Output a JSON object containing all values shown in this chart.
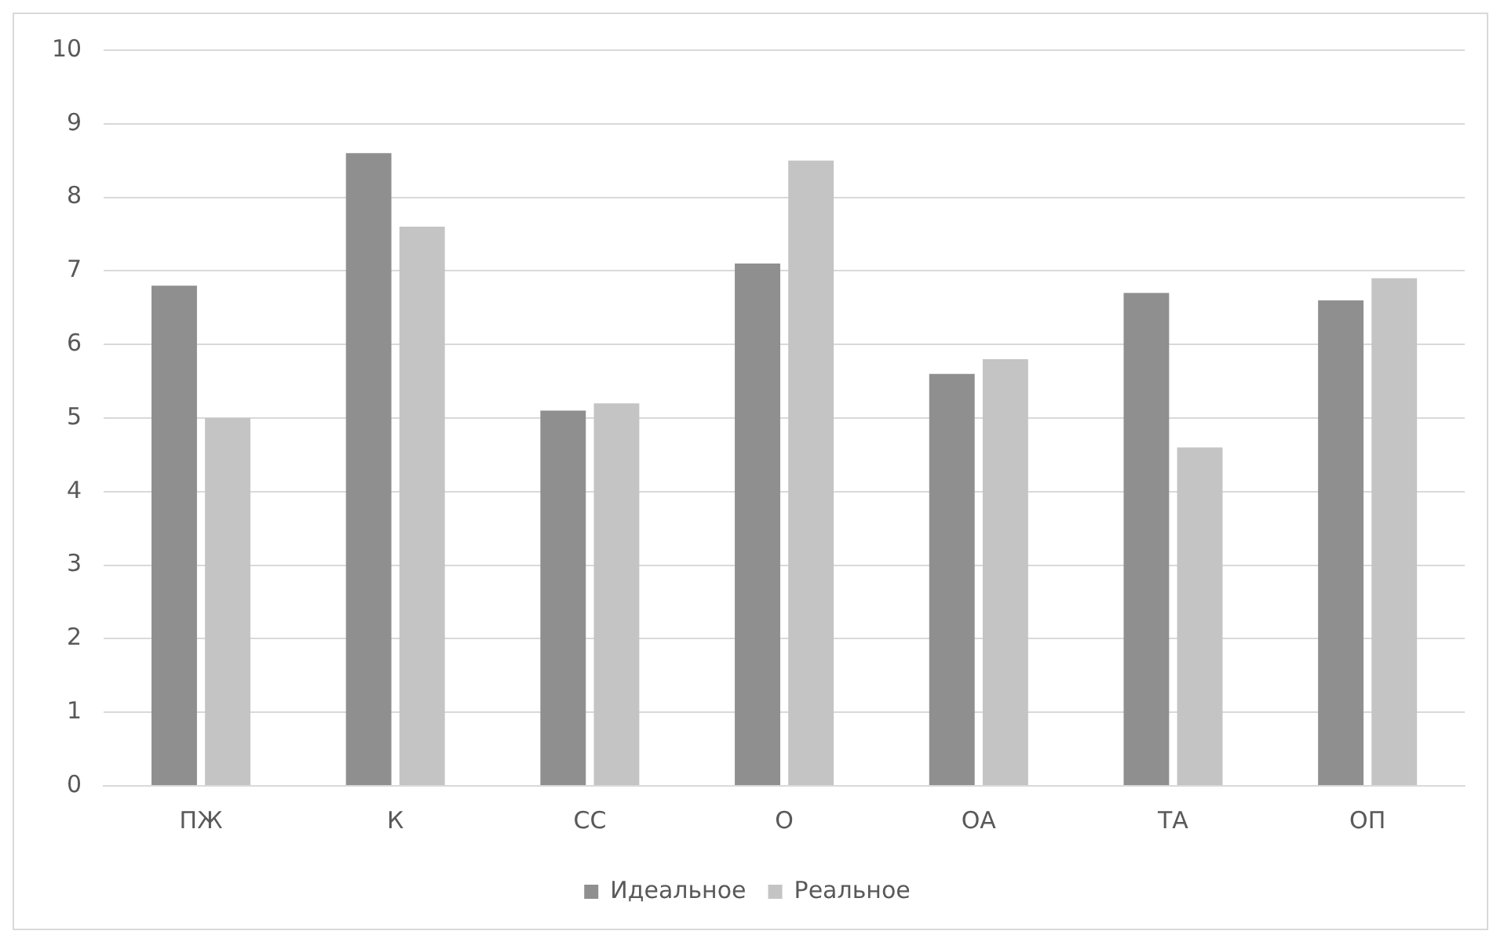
{
  "chart_data": {
    "type": "bar",
    "categories": [
      "ПЖ",
      "К",
      "СС",
      "О",
      "ОА",
      "ТА",
      "ОП"
    ],
    "series": [
      {
        "name": "Идеальное",
        "color": "#8f8f8f",
        "values": [
          6.8,
          8.6,
          5.1,
          7.1,
          5.6,
          6.7,
          6.6
        ]
      },
      {
        "name": "Реальное",
        "color": "#c4c4c4",
        "values": [
          5.0,
          7.6,
          5.2,
          8.5,
          5.8,
          4.6,
          6.9
        ]
      }
    ],
    "ylim": [
      0,
      10
    ],
    "yticks": [
      0,
      1,
      2,
      3,
      4,
      5,
      6,
      7,
      8,
      9,
      10
    ],
    "grid": "y",
    "legend": "bottom"
  }
}
